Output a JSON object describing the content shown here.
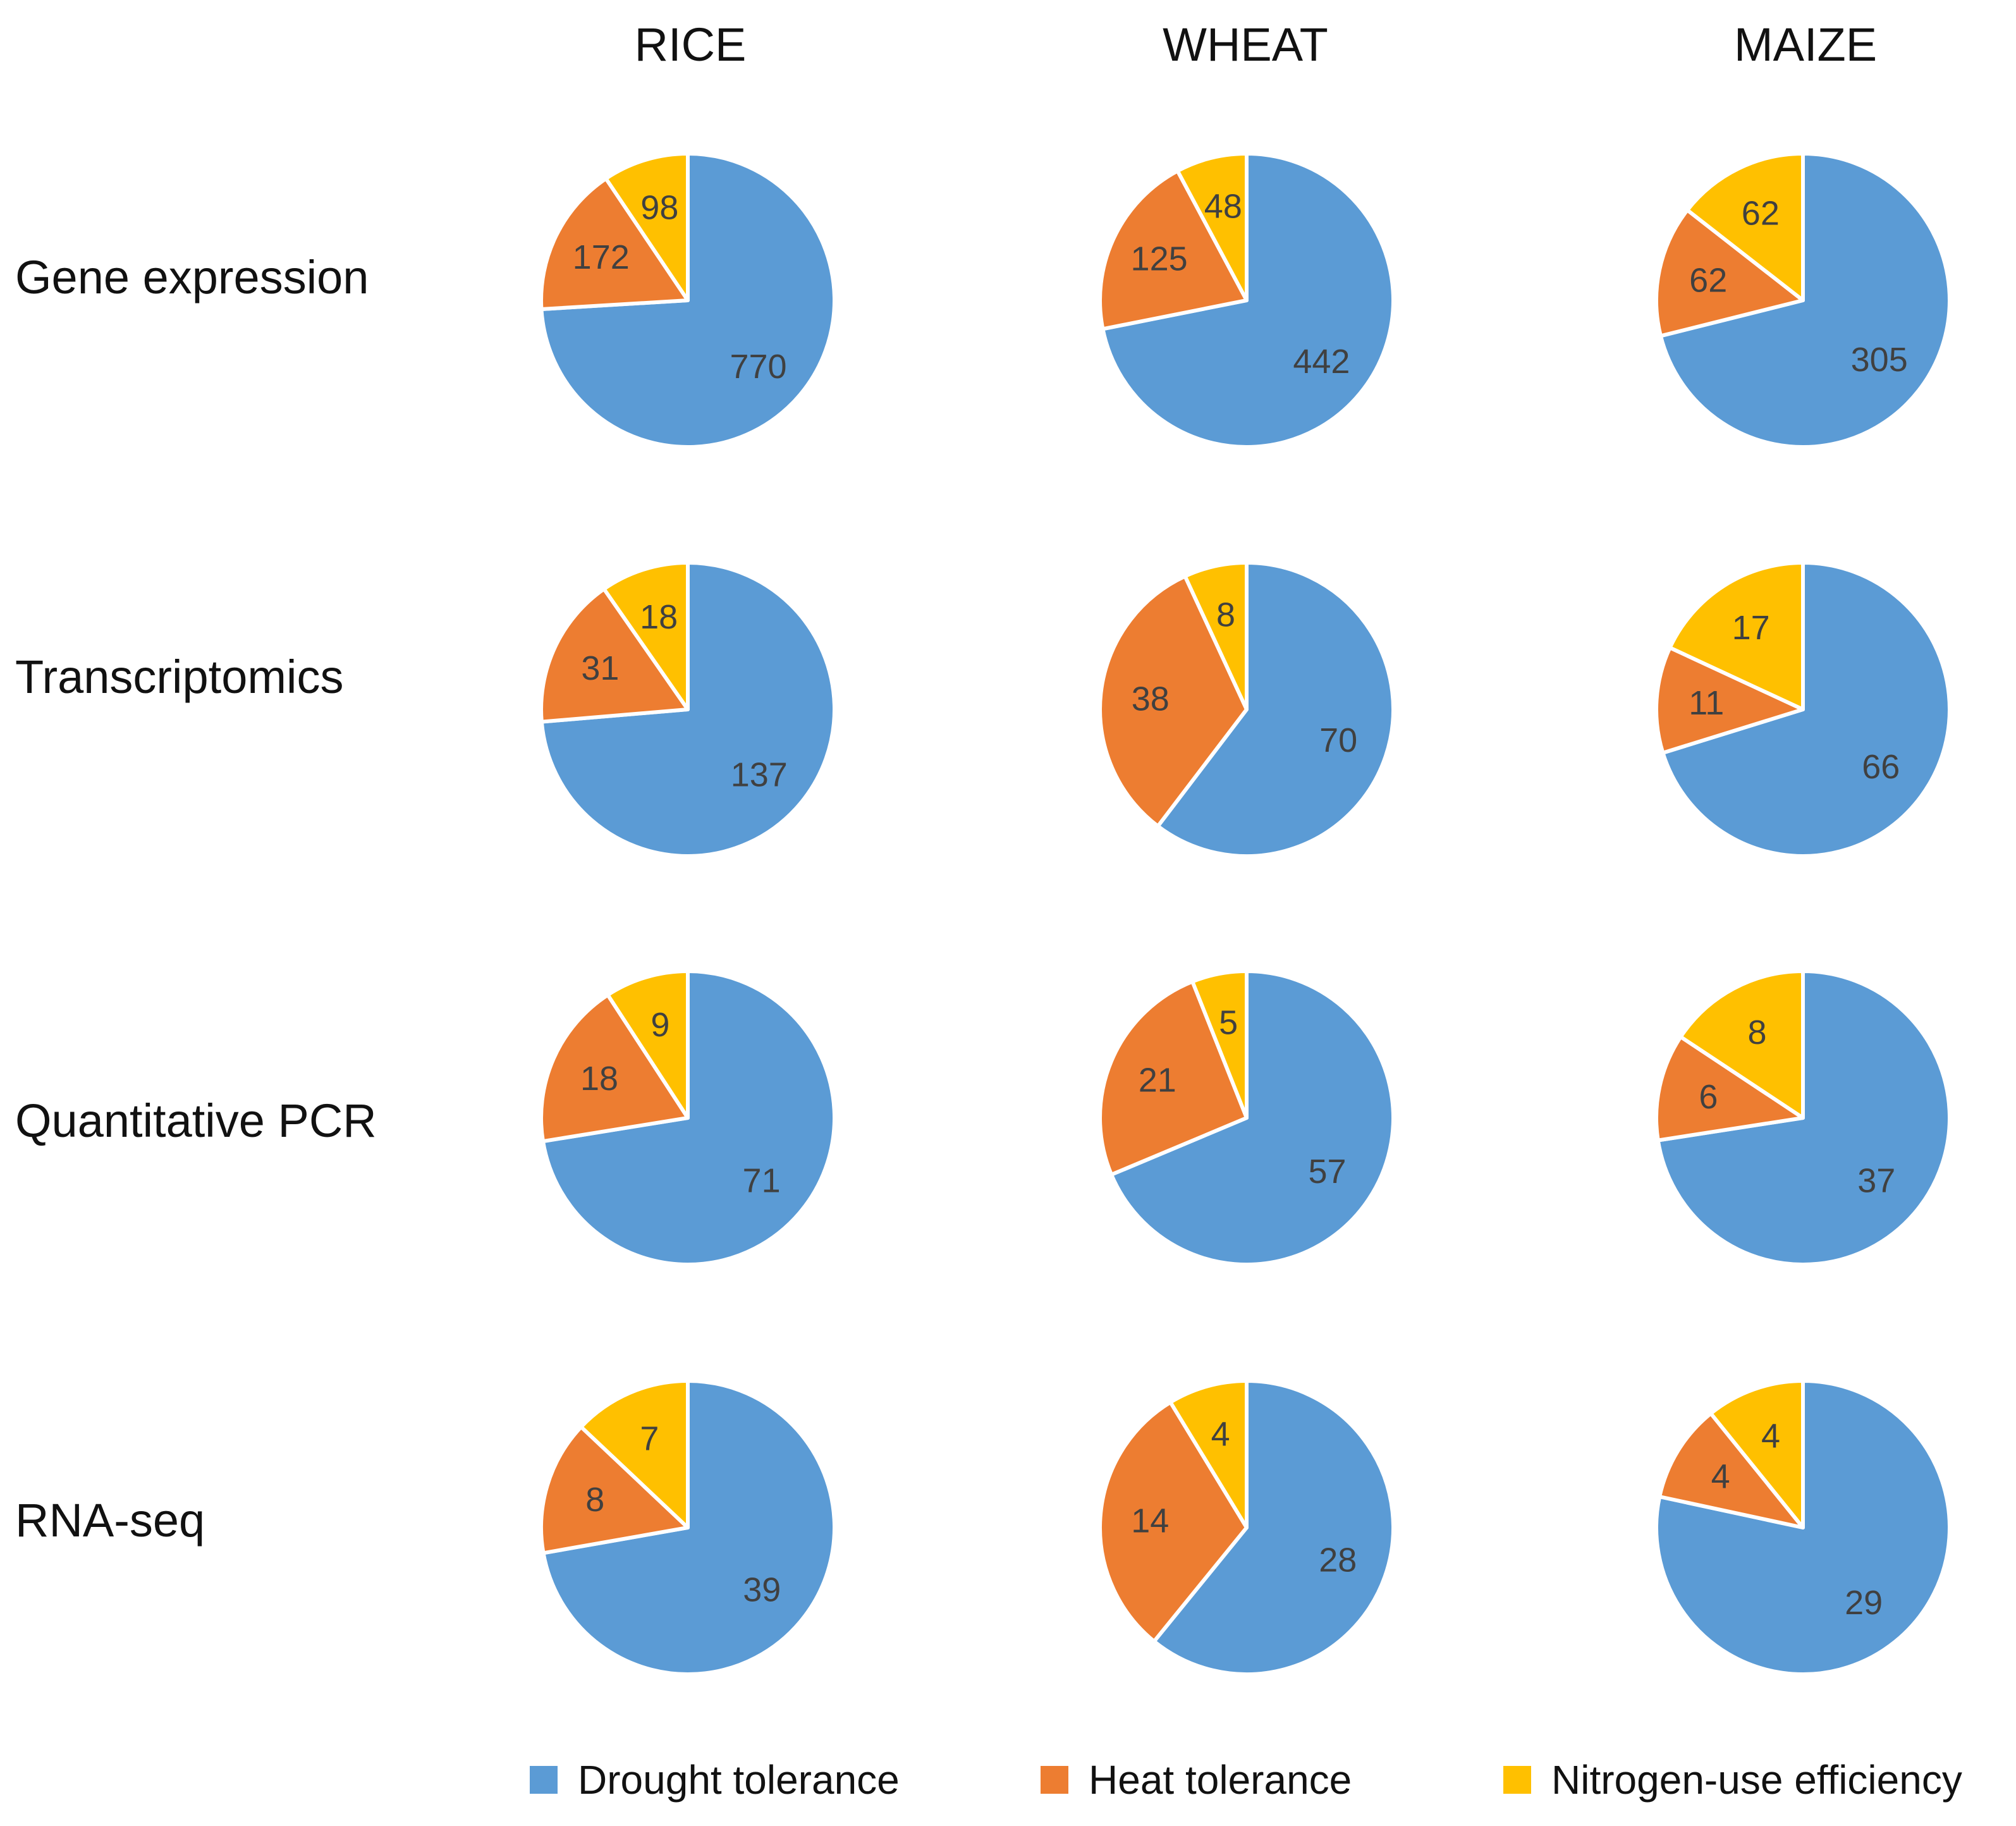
{
  "chart_data": {
    "type": "pie",
    "columns": [
      "RICE",
      "WHEAT",
      "MAIZE"
    ],
    "rows": [
      "Gene expression",
      "Transcriptomics",
      "Quantitative PCR",
      "RNA-seq"
    ],
    "series_names": [
      "Drought tolerance",
      "Heat tolerance",
      "Nitrogen-use efficiency"
    ],
    "colors": [
      "#5b9bd5",
      "#ed7d31",
      "#ffc000"
    ],
    "pies": [
      [
        {
          "values": [
            770,
            172,
            98
          ]
        },
        {
          "values": [
            442,
            125,
            48
          ]
        },
        {
          "values": [
            305,
            62,
            62
          ]
        }
      ],
      [
        {
          "values": [
            137,
            31,
            18
          ]
        },
        {
          "values": [
            70,
            38,
            8
          ]
        },
        {
          "values": [
            66,
            11,
            17
          ]
        }
      ],
      [
        {
          "values": [
            71,
            18,
            9
          ]
        },
        {
          "values": [
            57,
            21,
            5
          ]
        },
        {
          "values": [
            37,
            6,
            8
          ]
        }
      ],
      [
        {
          "values": [
            39,
            8,
            7
          ]
        },
        {
          "values": [
            28,
            14,
            4
          ]
        },
        {
          "values": [
            29,
            4,
            4
          ]
        }
      ]
    ]
  }
}
